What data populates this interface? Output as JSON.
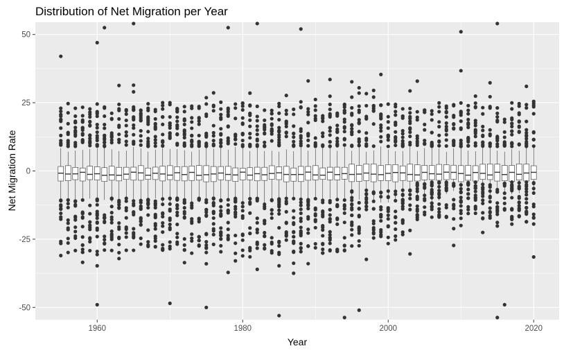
{
  "chart_data": {
    "type": "boxplot",
    "title": "Distribution of Net Migration per Year",
    "xlabel": "Year",
    "ylabel": "Net Migration Rate",
    "xlim": [
      1951.5,
      2023.5
    ],
    "ylim": [
      -54.5,
      54.5
    ],
    "x_ticks": [
      1960,
      1980,
      2000,
      2020
    ],
    "x_tick_labels": [
      "1960",
      "1980",
      "2000",
      "2020"
    ],
    "y_ticks": [
      -50,
      -25,
      0,
      25,
      50
    ],
    "y_tick_labels": [
      "-50",
      "-25",
      "0",
      "25",
      "50"
    ],
    "grid": true,
    "legend": "none",
    "colors": {
      "panel": "#ebebeb",
      "grid_major": "#ffffff",
      "box_fill": "#ffffff",
      "box_line": "#333333",
      "outlier": "#333333",
      "tick_label": "#4d4d4d"
    },
    "box_summary": {
      "x_start": 1955,
      "x_end": 2020,
      "step": 1,
      "median_approx": -1,
      "q1_approx": -3.5,
      "q3_approx": 1.5,
      "whisker_low_approx": -11,
      "whisker_high_approx": 8,
      "outlier_band_upper": [
        9,
        25
      ],
      "outlier_band_lower": [
        -30,
        -10
      ]
    },
    "outliers_notable": [
      {
        "x": 1955,
        "y": 42
      },
      {
        "x": 1955,
        "y": -31
      },
      {
        "x": 1960,
        "y": 47
      },
      {
        "x": 1960,
        "y": -49
      },
      {
        "x": 1961,
        "y": 52.5
      },
      {
        "x": 1965,
        "y": 54
      },
      {
        "x": 1970,
        "y": -48.5
      },
      {
        "x": 1975,
        "y": -50
      },
      {
        "x": 1978,
        "y": 52.5
      },
      {
        "x": 1982,
        "y": 54
      },
      {
        "x": 1985,
        "y": -53
      },
      {
        "x": 1988,
        "y": 52
      },
      {
        "x": 1994,
        "y": -54
      },
      {
        "x": 1996,
        "y": -51
      },
      {
        "x": 2010,
        "y": 51
      },
      {
        "x": 2015,
        "y": 54.5
      },
      {
        "x": 2015,
        "y": -55
      },
      {
        "x": 2016,
        "y": -49
      },
      {
        "x": 2019,
        "y": 31
      },
      {
        "x": 2020,
        "y": -31.5
      }
    ]
  }
}
